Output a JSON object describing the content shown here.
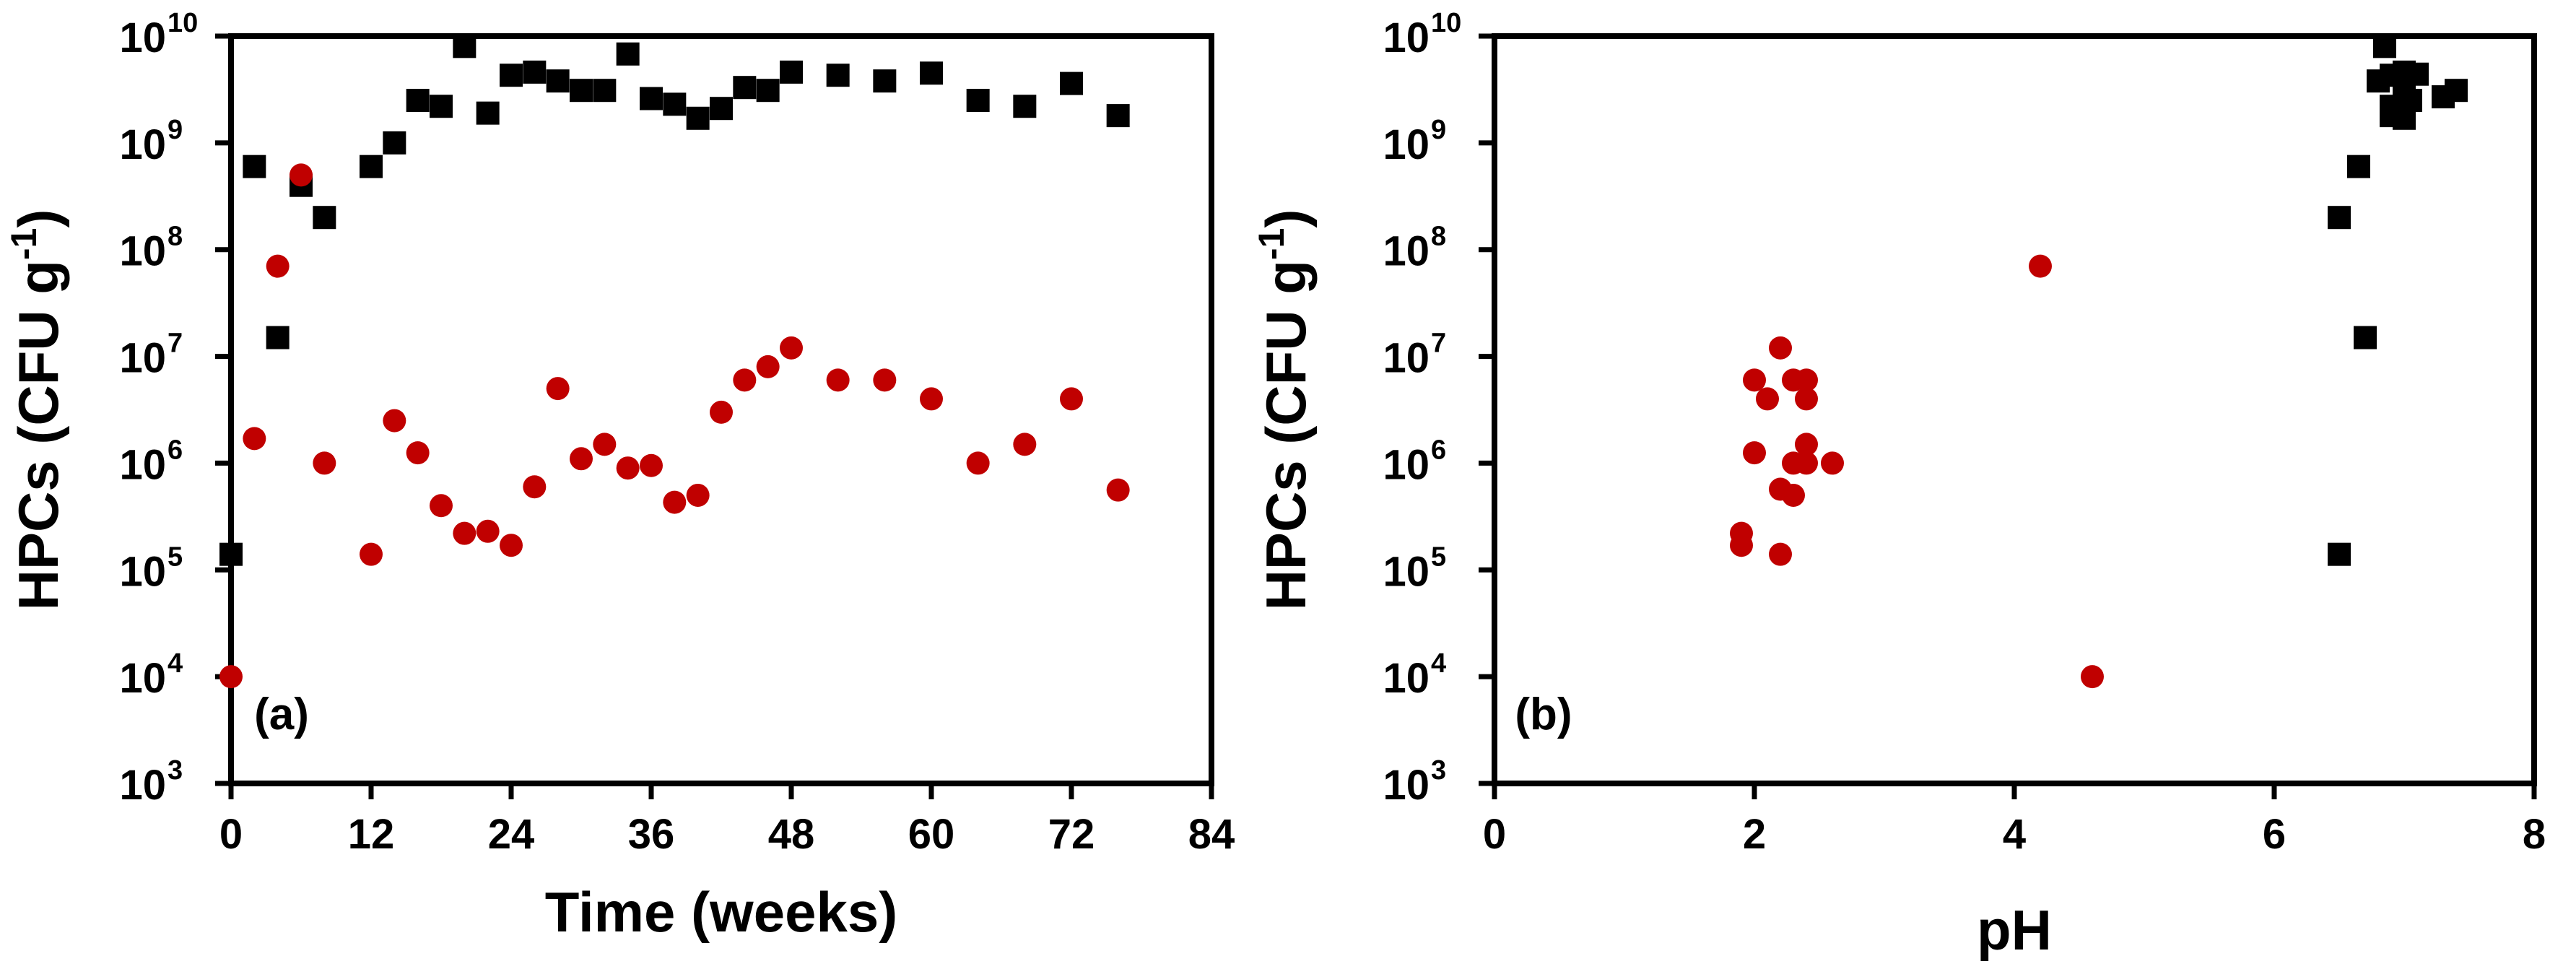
{
  "chart_data": [
    {
      "type": "scatter",
      "panel_label": "(a)",
      "xlabel": "Time (weeks)",
      "ylabel": "HPCs (CFU g",
      "ylabel_sup": "-1",
      "ylabel_close": ")",
      "xlim": [
        0,
        84
      ],
      "ylim_log10": [
        3,
        10
      ],
      "yscale": "log",
      "xticks": [
        {
          "value": 0,
          "label": "0"
        },
        {
          "value": 12,
          "label": "12"
        },
        {
          "value": 24,
          "label": "24"
        },
        {
          "value": 36,
          "label": "36"
        },
        {
          "value": 48,
          "label": "48"
        },
        {
          "value": 60,
          "label": "60"
        },
        {
          "value": 72,
          "label": "72"
        },
        {
          "value": 84,
          "label": "84"
        }
      ],
      "yticks": [
        {
          "exp": 3,
          "base": "10",
          "sup": "3"
        },
        {
          "exp": 4,
          "base": "10",
          "sup": "4"
        },
        {
          "exp": 5,
          "base": "10",
          "sup": "5"
        },
        {
          "exp": 6,
          "base": "10",
          "sup": "6"
        },
        {
          "exp": 7,
          "base": "10",
          "sup": "7"
        },
        {
          "exp": 8,
          "base": "10",
          "sup": "8"
        },
        {
          "exp": 9,
          "base": "10",
          "sup": "9"
        },
        {
          "exp": 10,
          "base": "10",
          "sup": "10"
        }
      ],
      "series": [
        {
          "name": "square-series",
          "marker": "square",
          "color": "#000000",
          "points": [
            [
              0,
              140000.0
            ],
            [
              2,
              600000000.0
            ],
            [
              4,
              15000000.0
            ],
            [
              6,
              400000000.0
            ],
            [
              8,
              200000000.0
            ],
            [
              12,
              600000000.0
            ],
            [
              14,
              1000000000.0
            ],
            [
              16,
              2500000000.0
            ],
            [
              18,
              2200000000.0
            ],
            [
              20,
              8000000000.0
            ],
            [
              22,
              1900000000.0
            ],
            [
              24,
              4300000000.0
            ],
            [
              26,
              4600000000.0
            ],
            [
              28,
              3800000000.0
            ],
            [
              30,
              3100000000.0
            ],
            [
              32,
              3100000000.0
            ],
            [
              34,
              6800000000.0
            ],
            [
              36,
              2600000000.0
            ],
            [
              38,
              2300000000.0
            ],
            [
              40,
              1700000000.0
            ],
            [
              42,
              2100000000.0
            ],
            [
              44,
              3300000000.0
            ],
            [
              46,
              3100000000.0
            ],
            [
              48,
              4600000000.0
            ],
            [
              52,
              4300000000.0
            ],
            [
              56,
              3800000000.0
            ],
            [
              60,
              4500000000.0
            ],
            [
              64,
              2500000000.0
            ],
            [
              68,
              2200000000.0
            ],
            [
              72,
              3600000000.0
            ],
            [
              76,
              1800000000.0
            ]
          ]
        },
        {
          "name": "circle-series",
          "marker": "circle",
          "color": "#c00000",
          "points": [
            [
              0,
              10000.0
            ],
            [
              2,
              1700000.0
            ],
            [
              4,
              70000000.0
            ],
            [
              6,
              500000000.0
            ],
            [
              8,
              1000000.0
            ],
            [
              12,
              140000.0
            ],
            [
              14,
              2500000.0
            ],
            [
              16,
              1250000.0
            ],
            [
              18,
              400000.0
            ],
            [
              20,
              220000.0
            ],
            [
              22,
              230000.0
            ],
            [
              24,
              170000.0
            ],
            [
              26,
              600000.0
            ],
            [
              28,
              5000000.0
            ],
            [
              30,
              1100000.0
            ],
            [
              32,
              1500000.0
            ],
            [
              34,
              900000.0
            ],
            [
              36,
              950000.0
            ],
            [
              38,
              430000.0
            ],
            [
              40,
              500000.0
            ],
            [
              42,
              3000000.0
            ],
            [
              44,
              6000000.0
            ],
            [
              46,
              8000000.0
            ],
            [
              48,
              12000000.0
            ],
            [
              52,
              6000000.0
            ],
            [
              56,
              6000000.0
            ],
            [
              60,
              4000000.0
            ],
            [
              64,
              1000000.0
            ],
            [
              68,
              1500000.0
            ],
            [
              72,
              4000000.0
            ],
            [
              76,
              560000.0
            ]
          ]
        }
      ]
    },
    {
      "type": "scatter",
      "panel_label": "(b)",
      "xlabel": "pH",
      "ylabel": "HPCs (CFU g",
      "ylabel_sup": "-1",
      "ylabel_close": ")",
      "xlim": [
        0,
        8
      ],
      "ylim_log10": [
        3,
        10
      ],
      "yscale": "log",
      "xticks": [
        {
          "value": 0,
          "label": "0"
        },
        {
          "value": 2,
          "label": "2"
        },
        {
          "value": 4,
          "label": "4"
        },
        {
          "value": 6,
          "label": "6"
        },
        {
          "value": 8,
          "label": "8"
        }
      ],
      "yticks": [
        {
          "exp": 3,
          "base": "10",
          "sup": "3"
        },
        {
          "exp": 4,
          "base": "10",
          "sup": "4"
        },
        {
          "exp": 5,
          "base": "10",
          "sup": "5"
        },
        {
          "exp": 6,
          "base": "10",
          "sup": "6"
        },
        {
          "exp": 7,
          "base": "10",
          "sup": "7"
        },
        {
          "exp": 8,
          "base": "10",
          "sup": "8"
        },
        {
          "exp": 9,
          "base": "10",
          "sup": "9"
        },
        {
          "exp": 10,
          "base": "10",
          "sup": "10"
        }
      ],
      "series": [
        {
          "name": "square-series",
          "marker": "square",
          "color": "#000000",
          "points": [
            [
              6.5,
              140000.0
            ],
            [
              6.7,
              15000000.0
            ],
            [
              6.5,
              200000000.0
            ],
            [
              6.65,
              600000000.0
            ],
            [
              6.9,
              1800000000.0
            ],
            [
              7.0,
              1700000000.0
            ],
            [
              6.8,
              3800000000.0
            ],
            [
              6.9,
              4300000000.0
            ],
            [
              7.0,
              4600000000.0
            ],
            [
              7.1,
              4400000000.0
            ],
            [
              6.85,
              8000000000.0
            ],
            [
              7.3,
              2700000000.0
            ],
            [
              7.4,
              3100000000.0
            ],
            [
              7.0,
              3600000000.0
            ],
            [
              6.9,
              2200000000.0
            ],
            [
              7.05,
              2500000000.0
            ]
          ]
        },
        {
          "name": "circle-series",
          "marker": "circle",
          "color": "#c00000",
          "points": [
            [
              4.6,
              10000.0
            ],
            [
              4.2,
              70000000.0
            ],
            [
              2.2,
              12000000.0
            ],
            [
              1.9,
              170000.0
            ],
            [
              1.9,
              220000.0
            ],
            [
              2.2,
              140000.0
            ],
            [
              2.3,
              500000.0
            ],
            [
              2.2,
              570000.0
            ],
            [
              2.0,
              1250000.0
            ],
            [
              2.3,
              1000000.0
            ],
            [
              2.4,
              1000000.0
            ],
            [
              2.6,
              1000000.0
            ],
            [
              2.4,
              1500000.0
            ],
            [
              2.1,
              4000000.0
            ],
            [
              2.4,
              4000000.0
            ],
            [
              2.0,
              6000000.0
            ],
            [
              2.3,
              6000000.0
            ],
            [
              2.4,
              6000000.0
            ]
          ]
        }
      ]
    }
  ]
}
